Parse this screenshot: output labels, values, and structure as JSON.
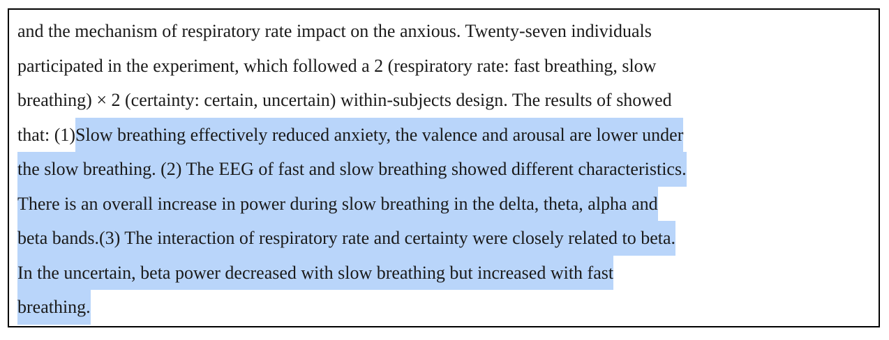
{
  "unselected_lines": [
    "and the mechanism of respiratory rate impact on the anxious. Twenty-seven individuals",
    "participated in the experiment, which followed a 2 (respiratory rate: fast breathing, slow",
    "breathing) × 2 (certainty: certain, uncertain) within-subjects design. The results of showed",
    "that: (1) "
  ],
  "selected_lines": [
    "Slow breathing effectively reduced anxiety, the valence and arousal are lower under",
    "the slow breathing. (2) The EEG of fast and slow breathing showed different characteristics.",
    "There is an overall increase in power during slow breathing in the delta, theta, alpha and",
    "beta bands.(3) The interaction of respiratory rate and certainty were closely related to beta.",
    "In the uncertain, beta power decreased with slow breathing but increased with fast",
    "breathing."
  ]
}
